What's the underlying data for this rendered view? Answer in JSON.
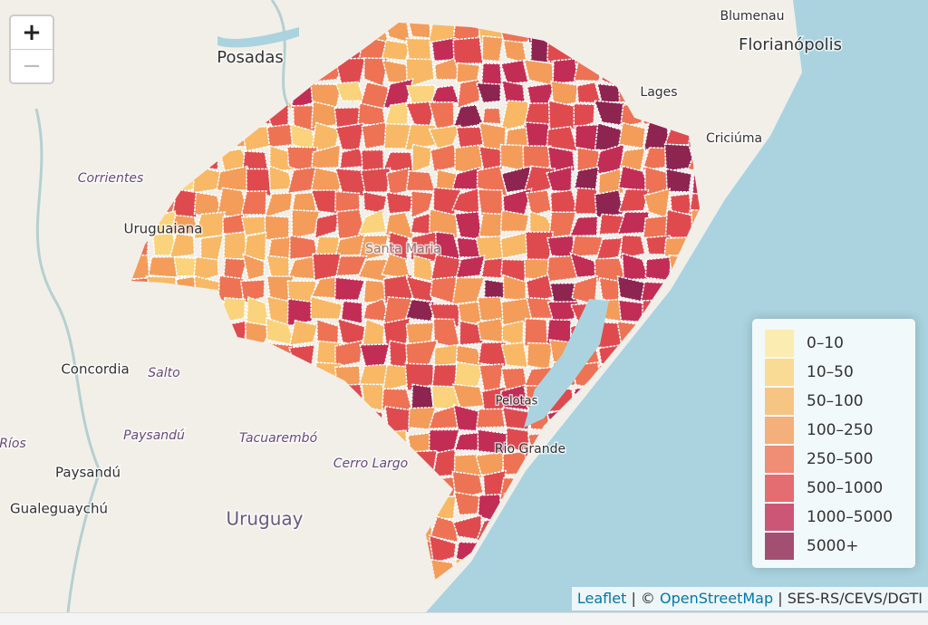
{
  "zoom": {
    "in": "+",
    "out": "−"
  },
  "places": [
    {
      "label": "Blumenau"
    },
    {
      "label": "Florianópolis"
    },
    {
      "label": "Posadas"
    },
    {
      "label": "Lages"
    },
    {
      "label": "Criciúma"
    },
    {
      "label": "Corrientes"
    },
    {
      "label": "Uruguaiana"
    },
    {
      "label": "Concordia"
    },
    {
      "label": "Salto"
    },
    {
      "label": "Ríos"
    },
    {
      "label": "Paysandú"
    },
    {
      "label": "Tacuarembó"
    },
    {
      "label": "Cerro Largo"
    },
    {
      "label": "Paysandú"
    },
    {
      "label": "Gualeguaychú"
    },
    {
      "label": "Uruguay"
    },
    {
      "label": "Pelotas"
    },
    {
      "label": "Rio Grande"
    },
    {
      "label": "Santa Maria"
    }
  ],
  "legend": {
    "items": [
      {
        "label": "0–10",
        "color": "#fde9a0"
      },
      {
        "label": "10–50",
        "color": "#fbd37c"
      },
      {
        "label": "50–100",
        "color": "#f8b865"
      },
      {
        "label": "100–250",
        "color": "#f49c5a"
      },
      {
        "label": "250–500",
        "color": "#ee7254"
      },
      {
        "label": "500–1000",
        "color": "#df4a4e"
      },
      {
        "label": "1000–5000",
        "color": "#c22d55"
      },
      {
        "label": "5000+",
        "color": "#8e2450"
      }
    ]
  },
  "attribution": {
    "leaflet": "Leaflet",
    "sep1": "|",
    "copy": "©",
    "osm": "OpenStreetMap",
    "sep2": "|",
    "source": "SES-RS/CEVS/DGTI"
  }
}
